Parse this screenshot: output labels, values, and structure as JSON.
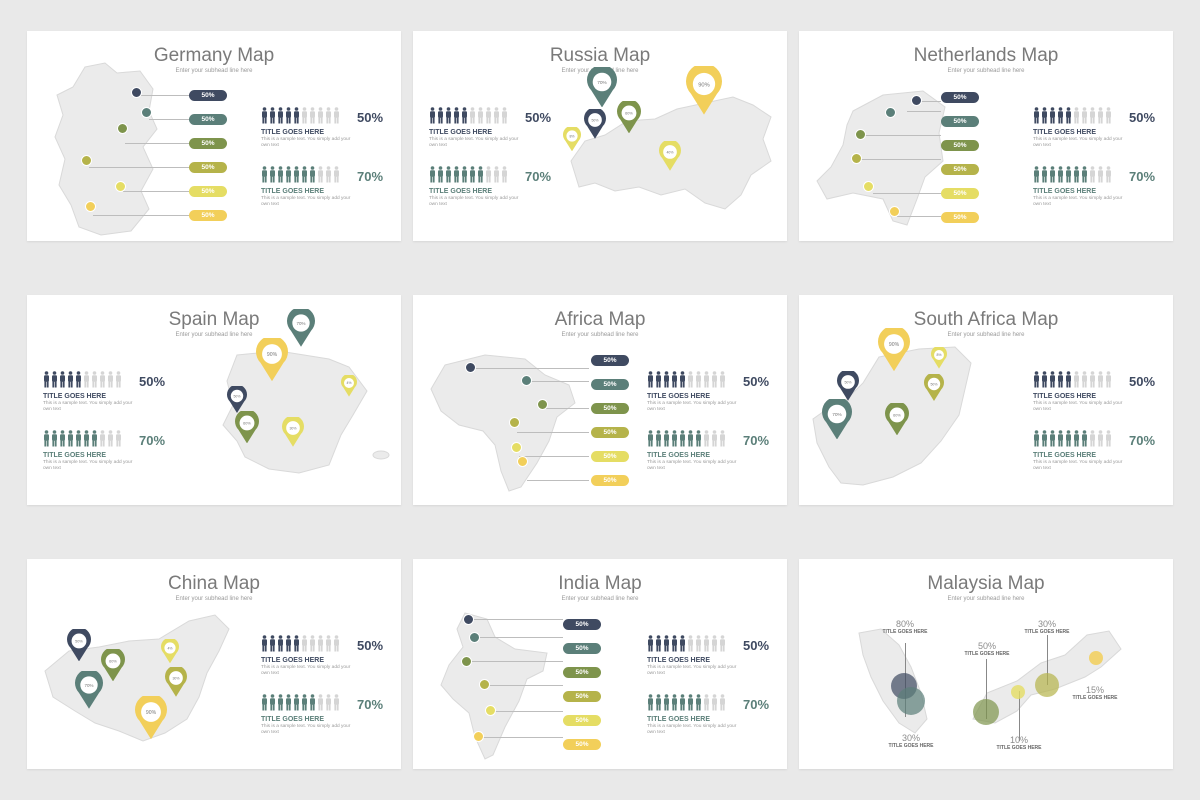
{
  "colors": {
    "navy": "#3f4a61",
    "teal": "#5b7f79",
    "olive": "#7e944c",
    "mustard": "#b5b34a",
    "lemon": "#e5dd64",
    "gold": "#f2cf5a",
    "land": "#ebebeb",
    "grey": "#d2d2d2"
  },
  "subhead": "Enter your subhead line here",
  "sample_text": "This is a sample text. You simply add your own text",
  "stat_title": "TITLE GOES HERE",
  "stat_a_pct": "50%",
  "stat_b_pct": "70%",
  "pill_label": "50%",
  "slides": {
    "germany": {
      "title": "Germany Map"
    },
    "russia": {
      "title": "Russia Map",
      "pins": [
        "70%",
        "50%",
        "60%",
        "90%",
        "40%",
        "8%"
      ]
    },
    "netherlands": {
      "title": "Netherlands Map"
    },
    "spain": {
      "title": "Spain Map",
      "pins": [
        "70%",
        "90%",
        "50%",
        "60%",
        "30%",
        "4%"
      ]
    },
    "africa": {
      "title": "Africa Map"
    },
    "south_africa": {
      "title": "South Africa Map",
      "pins": [
        "90%",
        "70%",
        "50%",
        "60%",
        "50%",
        "8%"
      ]
    },
    "china": {
      "title": "China Map",
      "pins": [
        "50%",
        "60%",
        "70%",
        "90%",
        "30%",
        "4%"
      ]
    },
    "india": {
      "title": "India Map"
    },
    "malaysia": {
      "title": "Malaysia Map",
      "labels": [
        {
          "pct": "80%",
          "title": "TITLE GOES HERE"
        },
        {
          "pct": "30%",
          "title": "TITLE GOES HERE"
        },
        {
          "pct": "50%",
          "title": "TITLE GOES HERE"
        },
        {
          "pct": "30%",
          "title": "TITLE GOES HERE"
        },
        {
          "pct": "10%",
          "title": "TITLE GOES HERE"
        },
        {
          "pct": "15%",
          "title": "TITLE GOES HERE"
        }
      ]
    }
  }
}
